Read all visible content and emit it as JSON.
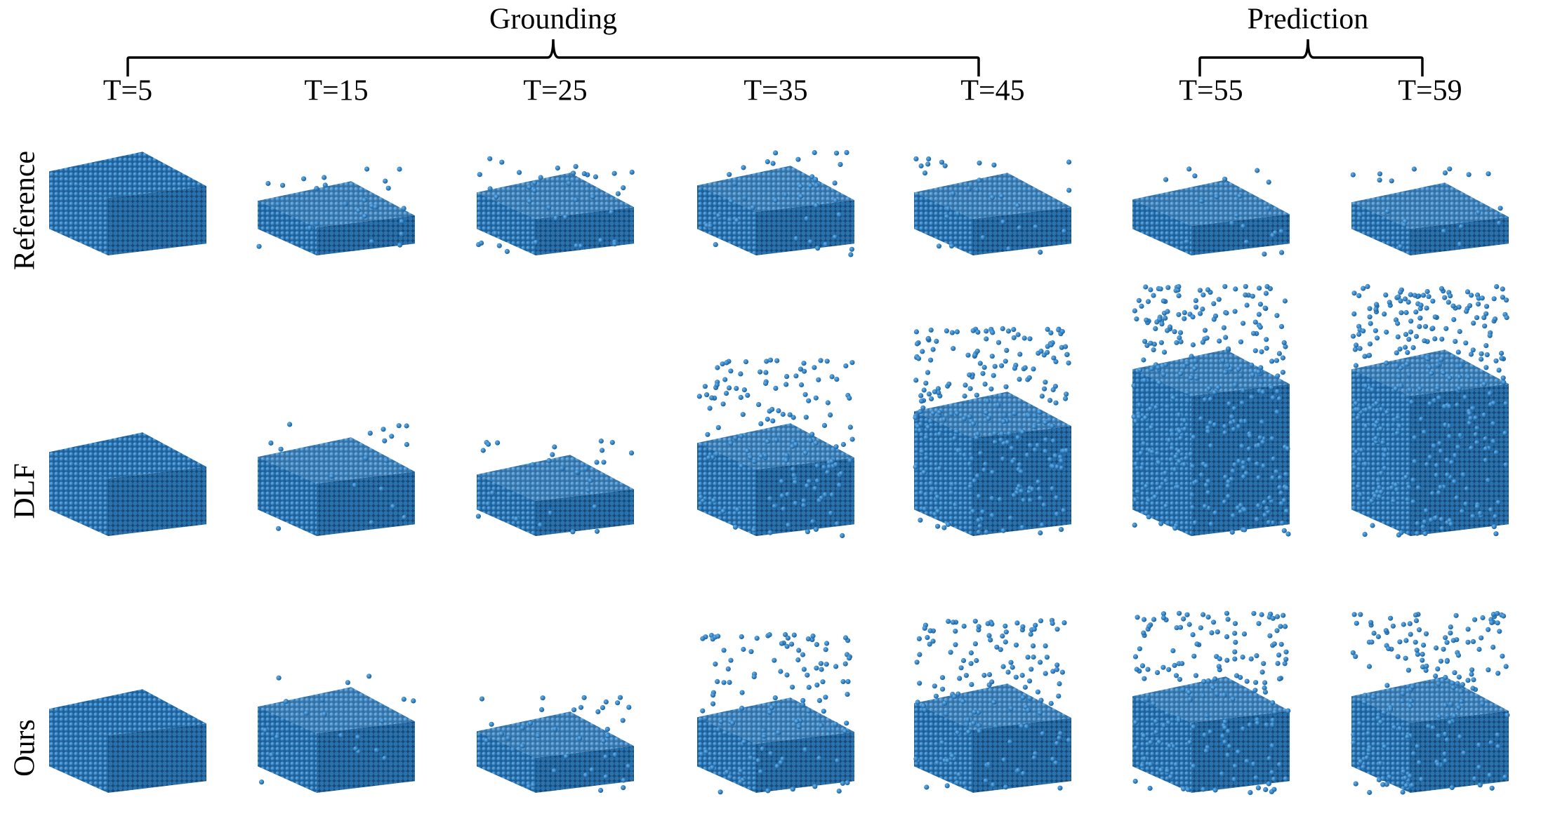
{
  "header": {
    "groups": [
      {
        "label": "Grounding"
      },
      {
        "label": "Prediction"
      }
    ],
    "time_steps": [
      "T=5",
      "T=15",
      "T=25",
      "T=35",
      "T=45",
      "T=55",
      "T=59"
    ]
  },
  "rows": [
    {
      "label": "Reference"
    },
    {
      "label": "DLF"
    },
    {
      "label": "Ours"
    }
  ]
}
